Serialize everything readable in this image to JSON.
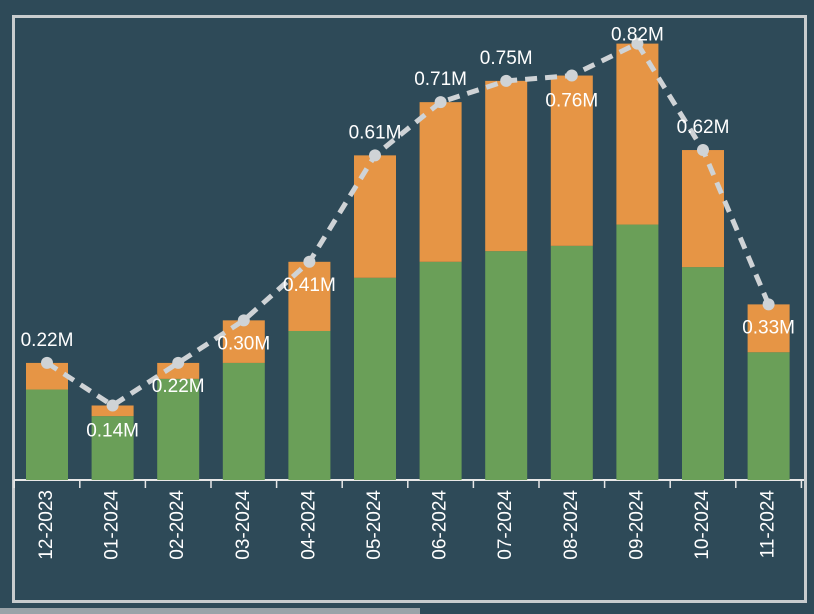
{
  "chart_data": {
    "type": "bar",
    "stacked": true,
    "categories": [
      "12-2023",
      "01-2024",
      "02-2024",
      "03-2024",
      "04-2024",
      "05-2024",
      "06-2024",
      "07-2024",
      "08-2024",
      "09-2024",
      "10-2024",
      "11-2024"
    ],
    "series": [
      {
        "color": "#6a9f58",
        "values": [
          0.17,
          0.12,
          0.19,
          0.22,
          0.28,
          0.38,
          0.41,
          0.43,
          0.44,
          0.48,
          0.4,
          0.24
        ]
      },
      {
        "color": "#e69545",
        "values": [
          0.05,
          0.02,
          0.03,
          0.08,
          0.13,
          0.23,
          0.3,
          0.32,
          0.32,
          0.34,
          0.22,
          0.09
        ]
      }
    ],
    "line": {
      "type": "line",
      "color": "#cfd3d6",
      "dashed": true,
      "values": [
        0.22,
        0.14,
        0.22,
        0.3,
        0.41,
        0.61,
        0.71,
        0.75,
        0.76,
        0.82,
        0.62,
        0.33
      ],
      "value_labels": [
        "0.22M",
        "0.14M",
        "0.22M",
        "0.30M",
        "0.41M",
        "0.61M",
        "0.71M",
        "0.75M",
        "0.76M",
        "0.82M",
        "0.62M",
        "0.33M"
      ]
    },
    "ylim": [
      0,
      0.87
    ]
  }
}
